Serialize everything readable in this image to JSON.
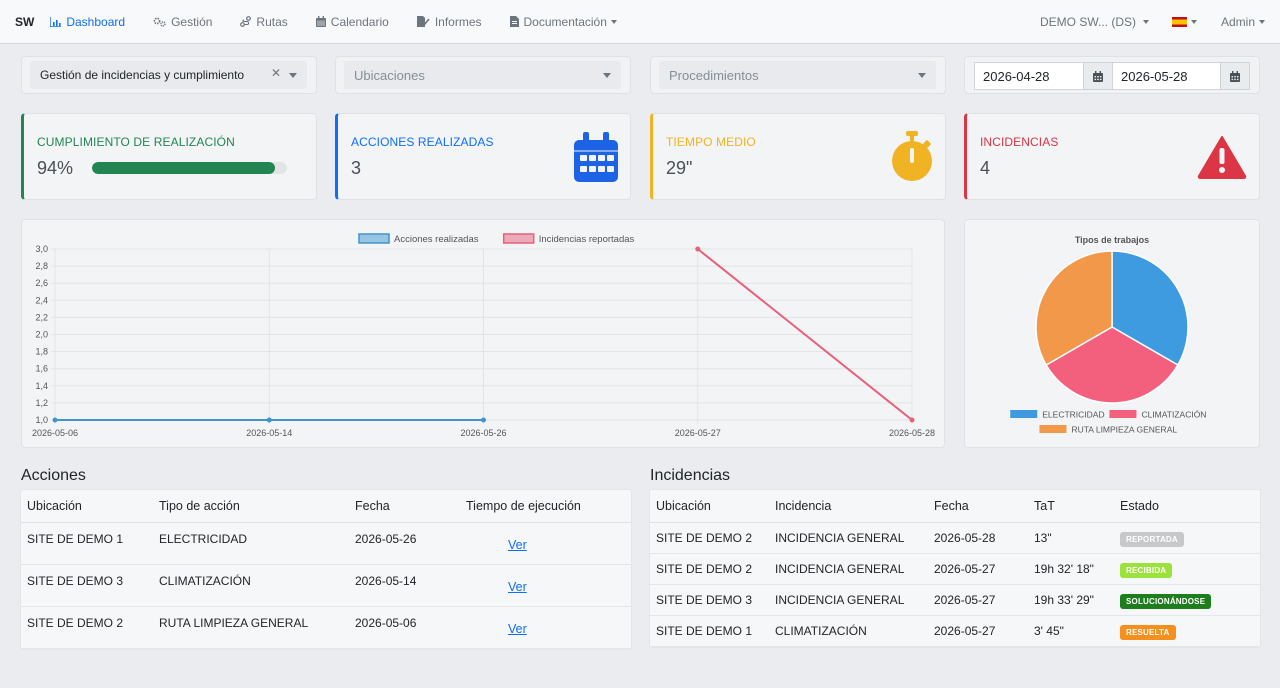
{
  "nav": {
    "brand": "SW",
    "items": [
      {
        "label": "Dashboard"
      },
      {
        "label": "Gestión"
      },
      {
        "label": "Rutas"
      },
      {
        "label": "Calendario"
      },
      {
        "label": "Informes"
      },
      {
        "label": "Documentación"
      }
    ],
    "site": "DEMO SW... (DS)",
    "user": "Admin"
  },
  "filters": {
    "type": "Gestión de incidencias y cumplimiento",
    "locations_placeholder": "Ubicaciones",
    "procedures_placeholder": "Procedimientos",
    "date_from": "2026-04-28",
    "date_to": "2026-05-28"
  },
  "kpis": {
    "compliance": {
      "label": "CUMPLIMIENTO DE REALIZACIÓN",
      "value": "94%",
      "percent": 94,
      "color": "#228552"
    },
    "actions": {
      "label": "ACCIONES REALIZADAS",
      "value": "3",
      "color": "#0d6efd"
    },
    "time": {
      "label": "TIEMPO MEDIO",
      "value": "29\"",
      "color": "#f0b323"
    },
    "incidents": {
      "label": "INCIDENCIAS",
      "value": "4",
      "color": "#dc3545"
    }
  },
  "chart_data": [
    {
      "type": "line",
      "title": "",
      "categories": [
        "2026-05-06",
        "2026-05-14",
        "2026-05-26",
        "2026-05-27",
        "2026-05-28"
      ],
      "ylim": [
        1.0,
        3.0
      ],
      "yticks": [
        "1,0",
        "1,2",
        "1,4",
        "1,6",
        "1,8",
        "2,0",
        "2,2",
        "2,4",
        "2,6",
        "2,8",
        "3,0"
      ],
      "grid": true,
      "legend": "top",
      "series": [
        {
          "name": "Acciones realizadas",
          "color": "#3e95cd",
          "values": [
            1,
            1,
            1,
            null,
            null
          ]
        },
        {
          "name": "Incidencias reportadas",
          "color": "#e8607a",
          "values": [
            null,
            null,
            null,
            3,
            1
          ]
        }
      ]
    },
    {
      "type": "pie",
      "title": "Tipos de trabajos",
      "legend": "bottom",
      "slices": [
        {
          "label": "ELECTRICIDAD",
          "value": 1,
          "color": "#3e9be0"
        },
        {
          "label": "CLIMATIZACIÓN",
          "value": 1,
          "color": "#f2607e"
        },
        {
          "label": "RUTA LIMPIEZA GENERAL",
          "value": 1,
          "color": "#f2984a"
        }
      ]
    }
  ],
  "actions_table": {
    "title": "Acciones",
    "columns": [
      "Ubicación",
      "Tipo de acción",
      "Fecha",
      "Tiempo de ejecución"
    ],
    "rows": [
      {
        "location": "SITE DE DEMO 1",
        "type": "ELECTRICIDAD",
        "date": "2026-05-26",
        "link": "Ver"
      },
      {
        "location": "SITE DE DEMO 3",
        "type": "CLIMATIZACIÓN",
        "date": "2026-05-14",
        "link": "Ver"
      },
      {
        "location": "SITE DE DEMO 2",
        "type": "RUTA LIMPIEZA GENERAL",
        "date": "2026-05-06",
        "link": "Ver"
      }
    ]
  },
  "incidents_table": {
    "title": "Incidencias",
    "columns": [
      "Ubicación",
      "Incidencia",
      "Fecha",
      "TaT",
      "Estado"
    ],
    "rows": [
      {
        "location": "SITE DE DEMO 2",
        "incident": "INCIDENCIA GENERAL",
        "date": "2026-05-28",
        "tat": "13\"",
        "status": "REPORTADA",
        "status_color": "#c6c8ca"
      },
      {
        "location": "SITE DE DEMO 2",
        "incident": "INCIDENCIA GENERAL",
        "date": "2026-05-27",
        "tat": "19h 32' 18\"",
        "status": "RECIBIDA",
        "status_color": "#9be33a"
      },
      {
        "location": "SITE DE DEMO 3",
        "incident": "INCIDENCIA GENERAL",
        "date": "2026-05-27",
        "tat": "19h 33' 29\"",
        "status": "SOLUCIONÁNDOSE",
        "status_color": "#1e7e1e"
      },
      {
        "location": "SITE DE DEMO 1",
        "incident": "CLIMATIZACIÓN",
        "date": "2026-05-27",
        "tat": "3' 45\"",
        "status": "RESUELTA",
        "status_color": "#f5901e"
      }
    ]
  }
}
